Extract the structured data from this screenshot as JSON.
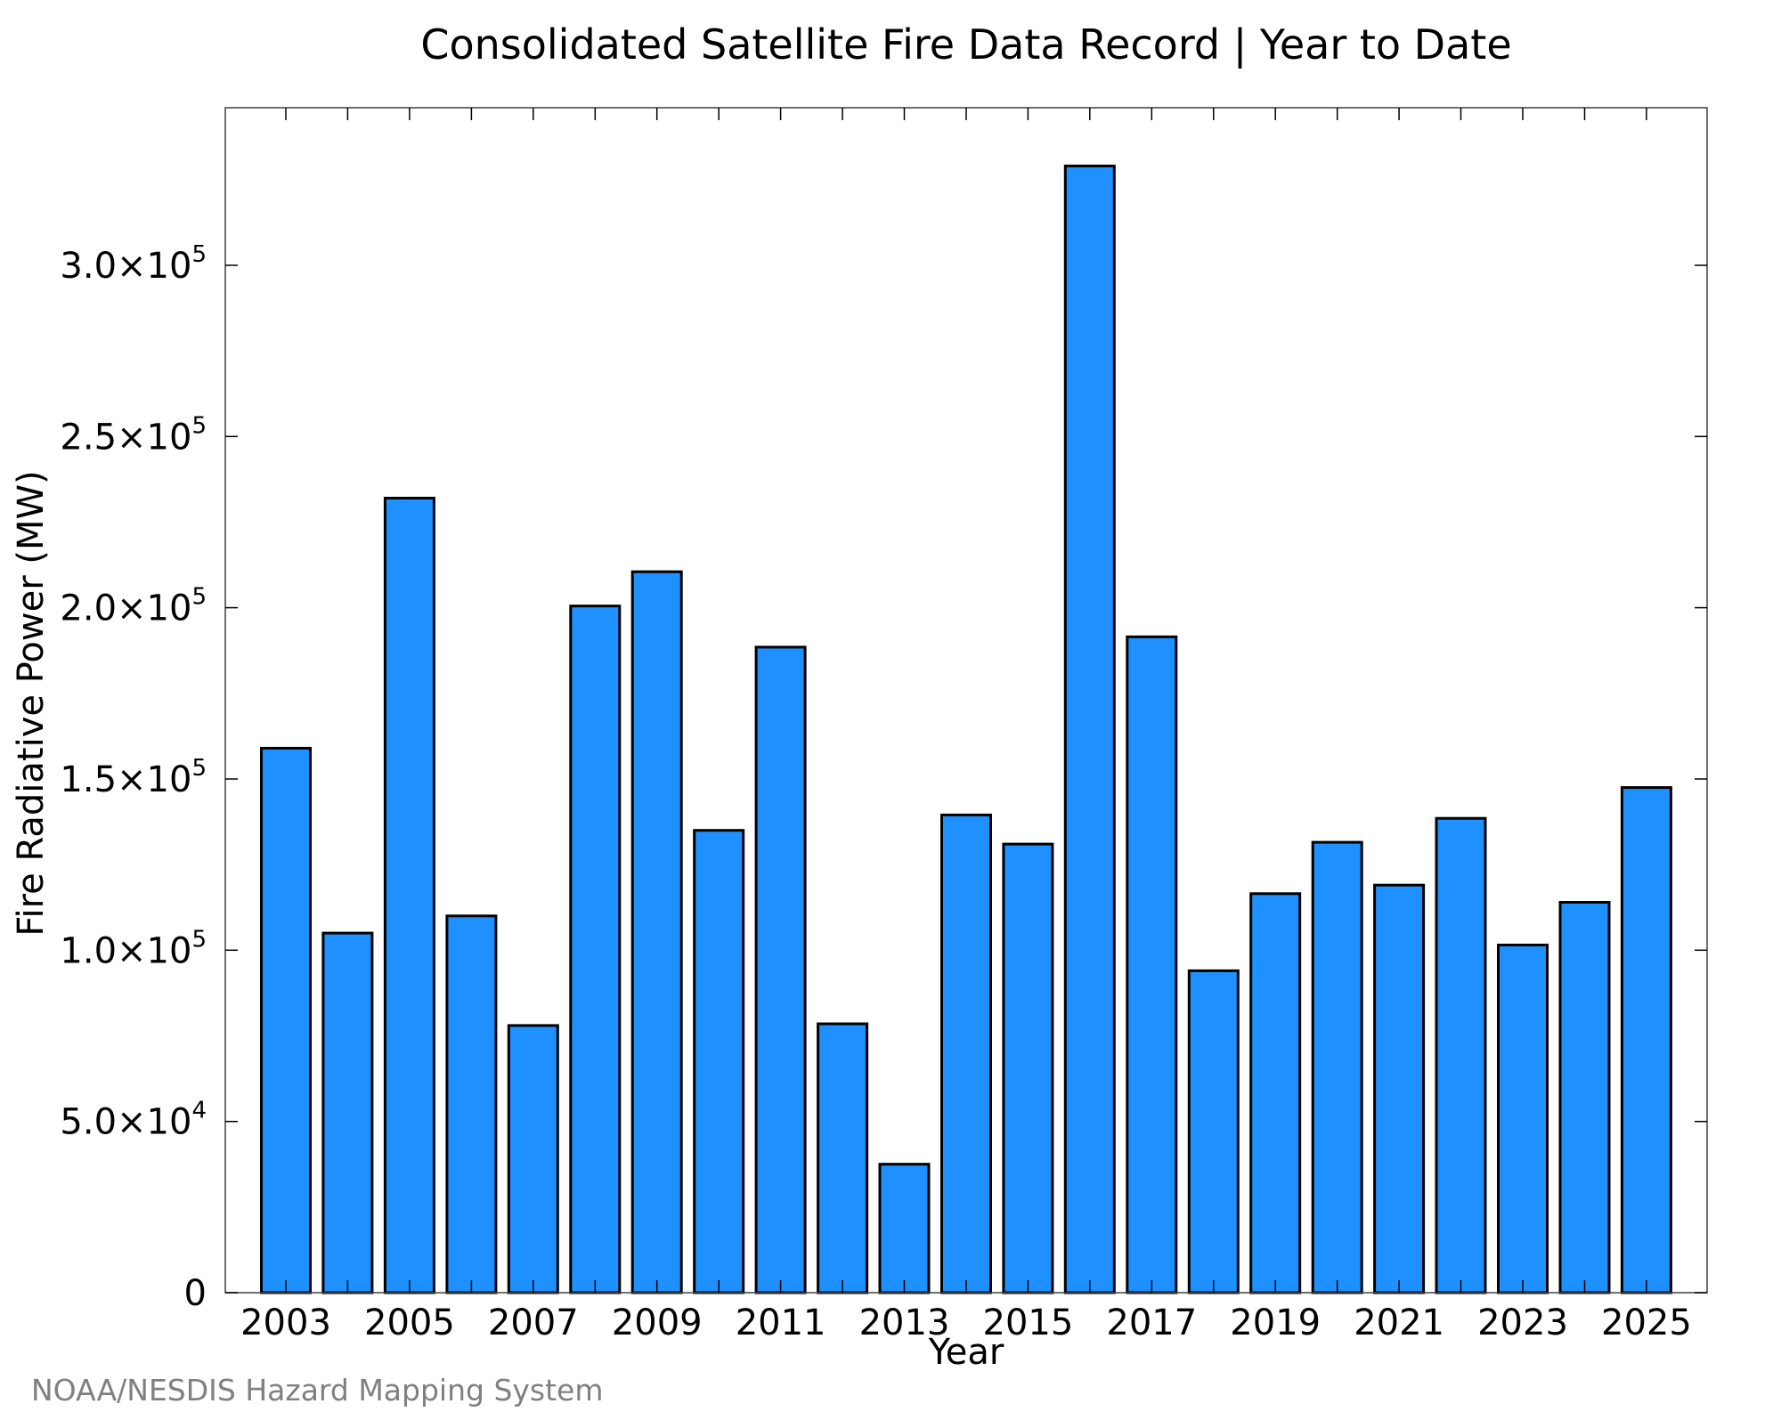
{
  "chart_data": {
    "type": "bar",
    "title": "Consolidated Satellite Fire Data Record | Year to Date",
    "xlabel": "Year",
    "ylabel": "Fire Radiative Power (MW)",
    "categories": [
      "2003",
      "2004",
      "2005",
      "2006",
      "2007",
      "2008",
      "2009",
      "2010",
      "2011",
      "2012",
      "2013",
      "2014",
      "2015",
      "2016",
      "2017",
      "2018",
      "2019",
      "2020",
      "2021",
      "2022",
      "2023",
      "2024",
      "2025"
    ],
    "values": [
      159000,
      105000,
      232000,
      110000,
      78000,
      200500,
      210500,
      135000,
      188500,
      78500,
      37500,
      139500,
      131000,
      329000,
      191500,
      94000,
      116500,
      131500,
      119000,
      138500,
      101500,
      114000,
      147500
    ],
    "ylim": [
      0,
      346000
    ],
    "x_tick_labels": [
      "2003",
      "2005",
      "2007",
      "2009",
      "2011",
      "2013",
      "2015",
      "2017",
      "2019",
      "2021",
      "2023",
      "2025"
    ],
    "y_ticks": [
      {
        "value": 0,
        "mantissa": "0",
        "exponent": ""
      },
      {
        "value": 50000,
        "mantissa": "5.0×10",
        "exponent": "4"
      },
      {
        "value": 100000,
        "mantissa": "1.0×10",
        "exponent": "5"
      },
      {
        "value": 150000,
        "mantissa": "1.5×10",
        "exponent": "5"
      },
      {
        "value": 200000,
        "mantissa": "2.0×10",
        "exponent": "5"
      },
      {
        "value": 250000,
        "mantissa": "2.5×10",
        "exponent": "5"
      },
      {
        "value": 300000,
        "mantissa": "3.0×10",
        "exponent": "5"
      }
    ],
    "bar_color": "#1e90ff",
    "bar_edge_color": "#000000",
    "grid": false,
    "legend": "none",
    "source_note": "NOAA/NESDIS Hazard Mapping System"
  }
}
